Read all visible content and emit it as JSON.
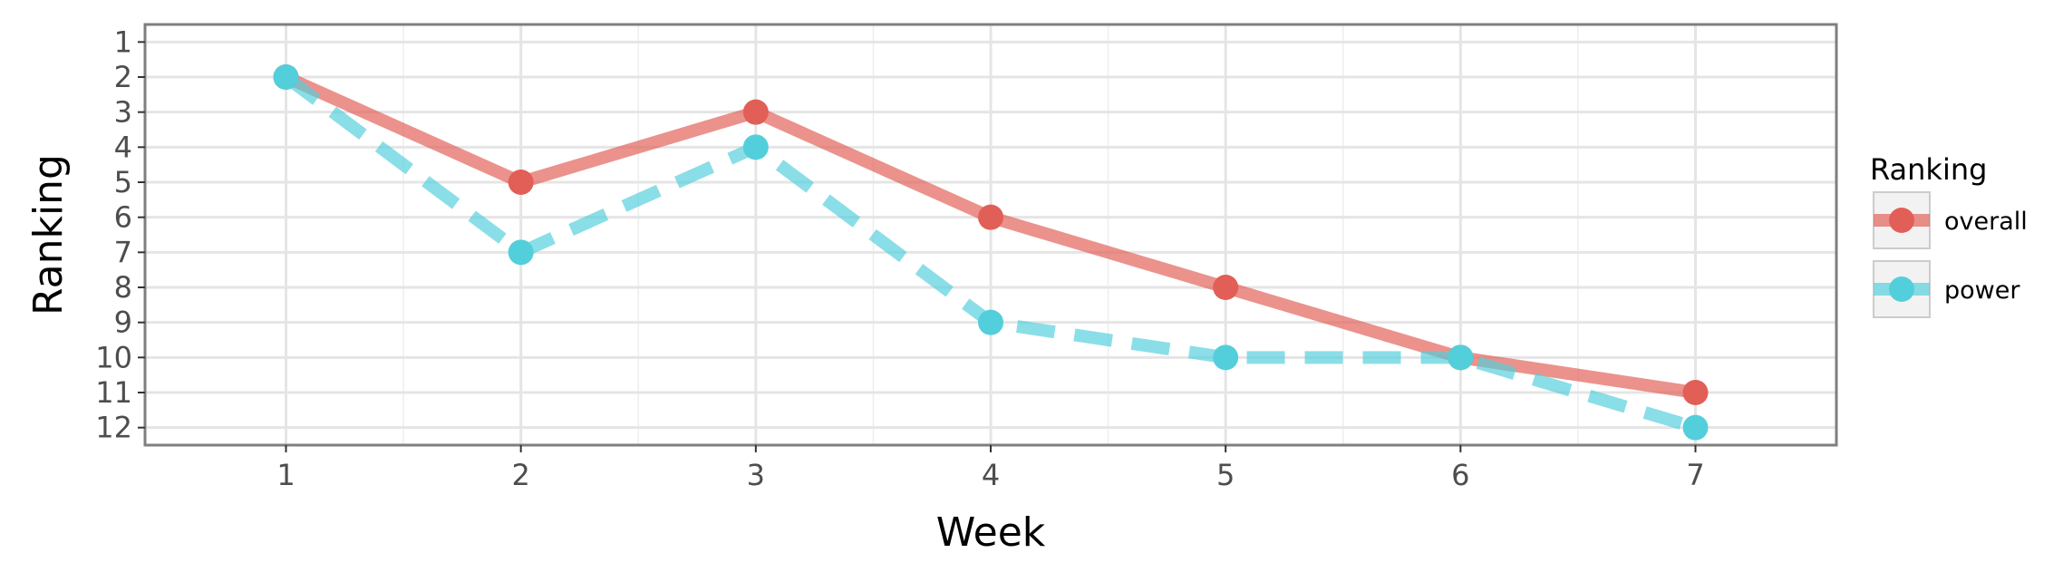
{
  "chart_data": {
    "type": "line",
    "xlabel": "Week",
    "ylabel": "Ranking",
    "x": [
      1,
      2,
      3,
      4,
      5,
      6,
      7
    ],
    "xlim": [
      0.4,
      7.6
    ],
    "ylim": [
      12.5,
      0.5
    ],
    "y_reversed": true,
    "x_ticks": [
      "1",
      "2",
      "3",
      "4",
      "5",
      "6",
      "7"
    ],
    "y_ticks": [
      "1",
      "2",
      "3",
      "4",
      "5",
      "6",
      "7",
      "8",
      "9",
      "10",
      "11",
      "12"
    ],
    "grid": true,
    "legend": {
      "title": "Ranking",
      "position": "right"
    },
    "series": [
      {
        "name": "overall",
        "values": [
          2,
          5,
          3,
          6,
          8,
          10,
          11
        ],
        "color": "#e15f56",
        "line_style": "solid"
      },
      {
        "name": "power",
        "values": [
          2,
          7,
          4,
          9,
          10,
          10,
          12
        ],
        "color": "#53cfdb",
        "line_style": "dashed"
      }
    ]
  }
}
